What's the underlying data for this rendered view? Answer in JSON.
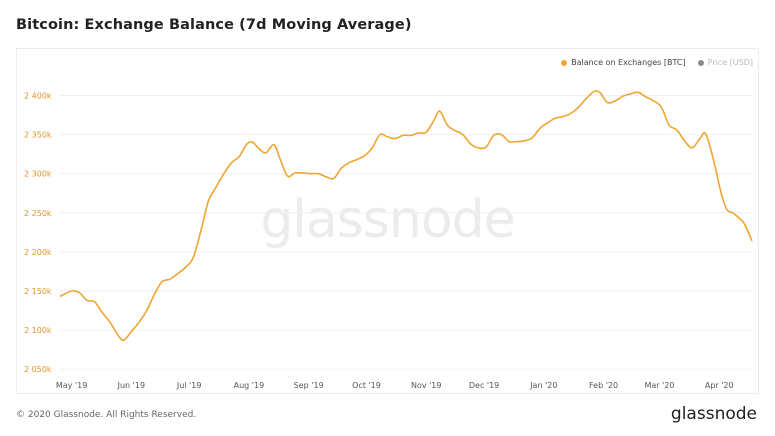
{
  "title": "Bitcoin: Exchange Balance (7d Moving Average)",
  "legend": [
    {
      "label": "Balance on Exchanges [BTC]",
      "color": "#f0a531",
      "active": true
    },
    {
      "label": "Price [USD]",
      "color": "#8c8c8c",
      "active": false
    }
  ],
  "watermark": "glassnode",
  "footer": {
    "copyright": "© 2020 Glassnode. All Rights Reserved.",
    "logo": "glassnode"
  },
  "colors": {
    "series": "#f0a531",
    "tick_label_y": "#e0952a",
    "tick_label_x": "#555555",
    "grid": "#f0f0f0"
  },
  "chart_data": {
    "type": "line",
    "xlabel": "",
    "ylabel": "",
    "x_ticks": [
      "May '19",
      "Jun '19",
      "Jul '19",
      "Aug '19",
      "Sep '19",
      "Oct '19",
      "Nov '19",
      "Dec '19",
      "Jan '20",
      "Feb '20",
      "Mar '20",
      "Apr '20"
    ],
    "y_ticks": [
      {
        "value": 2050000,
        "label": "2 050k"
      },
      {
        "value": 2100000,
        "label": "2 100k"
      },
      {
        "value": 2150000,
        "label": "2 150k"
      },
      {
        "value": 2200000,
        "label": "2 200k"
      },
      {
        "value": 2250000,
        "label": "2 250k"
      },
      {
        "value": 2300000,
        "label": "2 300k"
      },
      {
        "value": 2350000,
        "label": "2 350k"
      },
      {
        "value": 2400000,
        "label": "2 400k"
      }
    ],
    "xlim": [
      "2019-04-25",
      "2020-04-18"
    ],
    "ylim": [
      2040000,
      2430000
    ],
    "grid": true,
    "legend_position": "top-right",
    "series": [
      {
        "name": "Balance on Exchanges [BTC]",
        "points": [
          [
            "2019-04-25",
            2143000
          ],
          [
            "2019-05-01",
            2150000
          ],
          [
            "2019-05-05",
            2148000
          ],
          [
            "2019-05-09",
            2138000
          ],
          [
            "2019-05-13",
            2136000
          ],
          [
            "2019-05-17",
            2122000
          ],
          [
            "2019-05-21",
            2110000
          ],
          [
            "2019-05-25",
            2094000
          ],
          [
            "2019-05-28",
            2087000
          ],
          [
            "2019-06-01",
            2098000
          ],
          [
            "2019-06-05",
            2110000
          ],
          [
            "2019-06-09",
            2125000
          ],
          [
            "2019-06-13",
            2146000
          ],
          [
            "2019-06-17",
            2162000
          ],
          [
            "2019-06-21",
            2165000
          ],
          [
            "2019-06-25",
            2172000
          ],
          [
            "2019-06-29",
            2180000
          ],
          [
            "2019-07-03",
            2192000
          ],
          [
            "2019-07-07",
            2226000
          ],
          [
            "2019-07-11",
            2265000
          ],
          [
            "2019-07-15",
            2283000
          ],
          [
            "2019-07-19",
            2300000
          ],
          [
            "2019-07-23",
            2314000
          ],
          [
            "2019-07-27",
            2322000
          ],
          [
            "2019-07-31",
            2338000
          ],
          [
            "2019-08-03",
            2340000
          ],
          [
            "2019-08-07",
            2330000
          ],
          [
            "2019-08-10",
            2327000
          ],
          [
            "2019-08-14",
            2337000
          ],
          [
            "2019-08-17",
            2320000
          ],
          [
            "2019-08-21",
            2297000
          ],
          [
            "2019-08-25",
            2301000
          ],
          [
            "2019-08-29",
            2301000
          ],
          [
            "2019-09-02",
            2300000
          ],
          [
            "2019-09-06",
            2300000
          ],
          [
            "2019-09-10",
            2296000
          ],
          [
            "2019-09-14",
            2294000
          ],
          [
            "2019-09-18",
            2307000
          ],
          [
            "2019-09-22",
            2314000
          ],
          [
            "2019-09-26",
            2318000
          ],
          [
            "2019-09-30",
            2323000
          ],
          [
            "2019-10-04",
            2333000
          ],
          [
            "2019-10-08",
            2350000
          ],
          [
            "2019-10-12",
            2347000
          ],
          [
            "2019-10-16",
            2345000
          ],
          [
            "2019-10-20",
            2349000
          ],
          [
            "2019-10-24",
            2349000
          ],
          [
            "2019-10-28",
            2352000
          ],
          [
            "2019-11-01",
            2353000
          ],
          [
            "2019-11-05",
            2368000
          ],
          [
            "2019-11-08",
            2380000
          ],
          [
            "2019-11-12",
            2362000
          ],
          [
            "2019-11-16",
            2355000
          ],
          [
            "2019-11-20",
            2350000
          ],
          [
            "2019-11-24",
            2338000
          ],
          [
            "2019-11-28",
            2333000
          ],
          [
            "2019-12-02",
            2334000
          ],
          [
            "2019-12-06",
            2349000
          ],
          [
            "2019-12-10",
            2350000
          ],
          [
            "2019-12-14",
            2341000
          ],
          [
            "2019-12-18",
            2341000
          ],
          [
            "2019-12-22",
            2342000
          ],
          [
            "2019-12-26",
            2346000
          ],
          [
            "2019-12-30",
            2358000
          ],
          [
            "2020-01-03",
            2365000
          ],
          [
            "2020-01-07",
            2371000
          ],
          [
            "2020-01-11",
            2373000
          ],
          [
            "2020-01-15",
            2377000
          ],
          [
            "2020-01-19",
            2385000
          ],
          [
            "2020-01-23",
            2396000
          ],
          [
            "2020-01-27",
            2405000
          ],
          [
            "2020-01-30",
            2404000
          ],
          [
            "2020-02-03",
            2391000
          ],
          [
            "2020-02-07",
            2393000
          ],
          [
            "2020-02-11",
            2399000
          ],
          [
            "2020-02-15",
            2402000
          ],
          [
            "2020-02-19",
            2404000
          ],
          [
            "2020-02-23",
            2398000
          ],
          [
            "2020-02-27",
            2393000
          ],
          [
            "2020-03-02",
            2385000
          ],
          [
            "2020-03-06",
            2362000
          ],
          [
            "2020-03-10",
            2356000
          ],
          [
            "2020-03-14",
            2342000
          ],
          [
            "2020-03-18",
            2333000
          ],
          [
            "2020-03-22",
            2345000
          ],
          [
            "2020-03-25",
            2351000
          ],
          [
            "2020-03-29",
            2318000
          ],
          [
            "2020-04-02",
            2275000
          ],
          [
            "2020-04-05",
            2254000
          ],
          [
            "2020-04-08",
            2250000
          ],
          [
            "2020-04-11",
            2244000
          ],
          [
            "2020-04-14",
            2236000
          ],
          [
            "2020-04-18",
            2214000
          ]
        ]
      }
    ]
  }
}
